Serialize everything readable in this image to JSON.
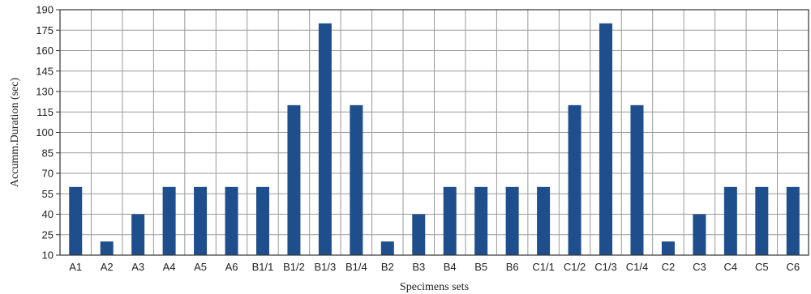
{
  "chart_data": {
    "type": "bar",
    "title": "",
    "xlabel": "Specimens sets",
    "ylabel": "Accumm.Duration (sec)",
    "ylim": [
      10,
      190
    ],
    "yticks": [
      10,
      25,
      40,
      55,
      70,
      85,
      100,
      115,
      130,
      145,
      160,
      175,
      190
    ],
    "grid": true,
    "legend": "none",
    "bar_color": "#1f4e8c",
    "categories": [
      "A1",
      "A2",
      "A3",
      "A4",
      "A5",
      "A6",
      "B1/1",
      "B1/2",
      "B1/3",
      "B1/4",
      "B2",
      "B3",
      "B4",
      "B5",
      "B6",
      "C1/1",
      "C1/2",
      "C1/3",
      "C1/4",
      "C2",
      "C3",
      "C4",
      "C5",
      "C6"
    ],
    "values": [
      60,
      20,
      40,
      60,
      60,
      60,
      60,
      120,
      180,
      120,
      20,
      40,
      60,
      60,
      60,
      60,
      120,
      180,
      120,
      20,
      40,
      60,
      60,
      60
    ]
  }
}
